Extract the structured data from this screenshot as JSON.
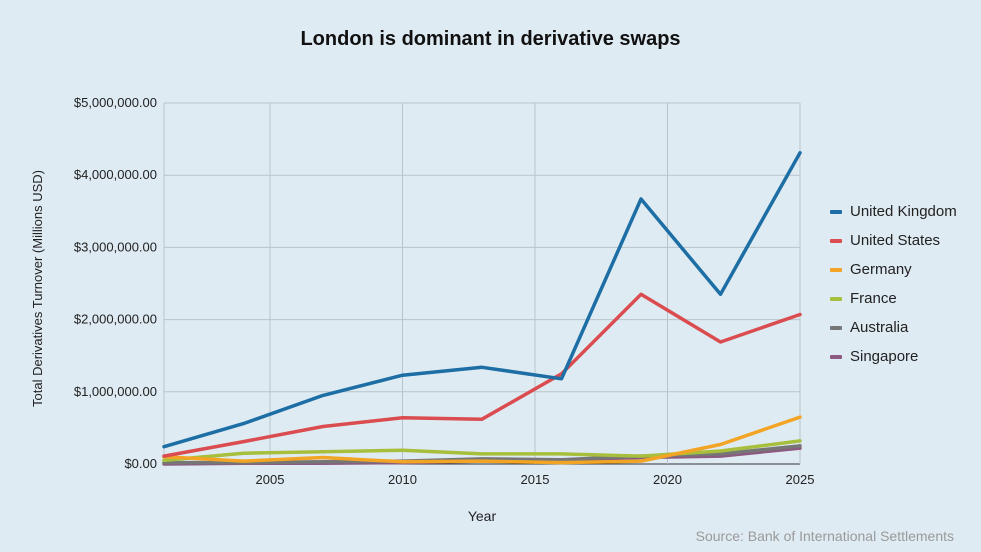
{
  "chart_data": {
    "type": "line",
    "title": "London is dominant in derivative swaps",
    "xlabel": "Year",
    "ylabel": "Total Derivatives Turnover (Millions USD)",
    "source": "Source: Bank of International Settlements",
    "xlim": [
      2001,
      2025
    ],
    "ylim": [
      0,
      5000000
    ],
    "x_ticks": [
      "2005",
      "2010",
      "2015",
      "2020",
      "2025"
    ],
    "x_tick_values": [
      2005,
      2010,
      2015,
      2020,
      2025
    ],
    "y_ticks": [
      "$0.00",
      "$1,000,000.00",
      "$2,000,000.00",
      "$3,000,000.00",
      "$4,000,000.00",
      "$5,000,000.00"
    ],
    "y_tick_values": [
      0,
      1000000,
      2000000,
      3000000,
      4000000,
      5000000
    ],
    "x": [
      2001,
      2004,
      2007,
      2010,
      2013,
      2016,
      2019,
      2022,
      2025
    ],
    "legend_position": "right",
    "series": [
      {
        "name": "United Kingdom",
        "color": "#1c6ea4",
        "values": [
          240000,
          560000,
          950000,
          1230000,
          1340000,
          1180000,
          3670000,
          2350000,
          4310000
        ]
      },
      {
        "name": "United States",
        "color": "#da4c50",
        "values": [
          110000,
          310000,
          520000,
          640000,
          620000,
          1250000,
          2350000,
          1690000,
          2070000
        ]
      },
      {
        "name": "Germany",
        "color": "#f2a524",
        "values": [
          100000,
          40000,
          90000,
          30000,
          40000,
          20000,
          40000,
          270000,
          650000
        ]
      },
      {
        "name": "France",
        "color": "#a8bf3d",
        "values": [
          50000,
          150000,
          170000,
          190000,
          140000,
          140000,
          110000,
          180000,
          320000
        ]
      },
      {
        "name": "Australia",
        "color": "#767676",
        "values": [
          20000,
          20000,
          30000,
          40000,
          70000,
          60000,
          110000,
          140000,
          250000
        ]
      },
      {
        "name": "Singapore",
        "color": "#8c5a80",
        "values": [
          0,
          10000,
          10000,
          20000,
          40000,
          50000,
          90000,
          110000,
          220000
        ]
      }
    ]
  }
}
